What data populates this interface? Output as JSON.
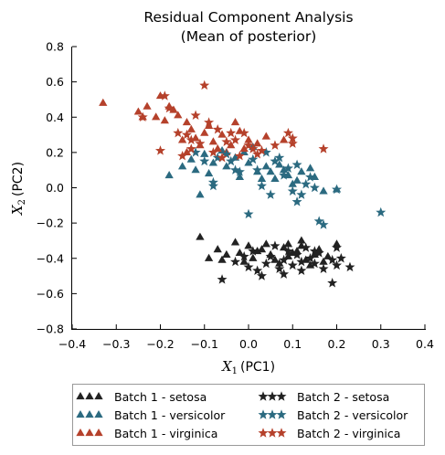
{
  "chart_data": {
    "type": "scatter",
    "title": [
      "Residual Component Analysis",
      "(Mean of posterior)"
    ],
    "xlabel": {
      "var": "X",
      "sub": "1",
      "suffix": "(PC1)"
    },
    "ylabel": {
      "var": "X",
      "sub": "2",
      "suffix": "(PC2)"
    },
    "xlim": [
      -0.4,
      0.4
    ],
    "ylim": [
      -0.8,
      0.8
    ],
    "xticks": [
      -0.4,
      -0.3,
      -0.2,
      -0.1,
      0.0,
      0.1,
      0.2,
      0.3,
      0.4
    ],
    "xtick_labels": [
      "−0.4",
      "−0.3",
      "−0.2",
      "−0.1",
      "0.0",
      "0.1",
      "0.2",
      "0.3",
      "0.4"
    ],
    "yticks": [
      -0.8,
      -0.6,
      -0.4,
      -0.2,
      0.0,
      0.2,
      0.4,
      0.6,
      0.8
    ],
    "ytick_labels": [
      "−0.8",
      "−0.6",
      "−0.4",
      "−0.2",
      "0.0",
      "0.2",
      "0.4",
      "0.6",
      "0.8"
    ],
    "grid": false,
    "legend_position": "below plot, two columns",
    "series": [
      {
        "name": "Batch 1 - setosa",
        "marker": "triangle",
        "color": "#222222",
        "points": [
          [
            -0.11,
            -0.28
          ],
          [
            -0.07,
            -0.35
          ],
          [
            -0.03,
            -0.31
          ],
          [
            -0.09,
            -0.4
          ],
          [
            -0.05,
            -0.38
          ],
          [
            -0.02,
            -0.37
          ],
          [
            0.0,
            -0.33
          ],
          [
            -0.06,
            -0.41
          ],
          [
            0.02,
            -0.36
          ],
          [
            0.04,
            -0.32
          ],
          [
            0.01,
            -0.4
          ],
          [
            0.05,
            -0.38
          ],
          [
            -0.01,
            -0.42
          ],
          [
            0.08,
            -0.34
          ],
          [
            0.06,
            -0.41
          ],
          [
            0.1,
            -0.37
          ],
          [
            0.12,
            -0.3
          ],
          [
            0.09,
            -0.39
          ],
          [
            0.03,
            -0.35
          ],
          [
            0.13,
            -0.41
          ],
          [
            0.11,
            -0.36
          ],
          [
            0.15,
            -0.38
          ],
          [
            0.17,
            -0.42
          ],
          [
            0.14,
            -0.44
          ],
          [
            0.07,
            -0.43
          ],
          [
            0.18,
            -0.39
          ],
          [
            0.2,
            -0.32
          ],
          [
            0.12,
            -0.33
          ],
          [
            0.16,
            -0.35
          ],
          [
            0.09,
            -0.32
          ]
        ]
      },
      {
        "name": "Batch 1 - versicolor",
        "marker": "triangle",
        "color": "#2b6a80",
        "points": [
          [
            -0.18,
            0.07
          ],
          [
            -0.15,
            0.12
          ],
          [
            -0.13,
            0.16
          ],
          [
            -0.12,
            0.1
          ],
          [
            -0.1,
            0.19
          ],
          [
            -0.08,
            0.14
          ],
          [
            -0.06,
            0.21
          ],
          [
            -0.05,
            0.12
          ],
          [
            -0.03,
            0.17
          ],
          [
            -0.01,
            0.2
          ],
          [
            0.01,
            0.23
          ],
          [
            0.0,
            0.14
          ],
          [
            0.02,
            0.09
          ],
          [
            0.04,
            0.12
          ],
          [
            0.05,
            0.09
          ],
          [
            0.06,
            0.05
          ],
          [
            0.07,
            0.13
          ],
          [
            0.08,
            0.1
          ],
          [
            0.09,
            0.07
          ],
          [
            0.1,
            0.02
          ],
          [
            0.11,
            0.04
          ],
          [
            0.12,
            0.09
          ],
          [
            0.14,
            0.11
          ],
          [
            0.15,
            0.06
          ],
          [
            0.17,
            -0.02
          ],
          [
            0.03,
            0.05
          ],
          [
            -0.02,
            0.06
          ],
          [
            -0.09,
            0.08
          ],
          [
            -0.11,
            -0.04
          ],
          [
            0.2,
            -0.01
          ]
        ]
      },
      {
        "name": "Batch 1 - virginica",
        "marker": "triangle",
        "color": "#b5412b",
        "points": [
          [
            -0.33,
            0.48
          ],
          [
            -0.25,
            0.43
          ],
          [
            -0.23,
            0.46
          ],
          [
            -0.2,
            0.52
          ],
          [
            -0.18,
            0.46
          ],
          [
            -0.16,
            0.41
          ],
          [
            -0.14,
            0.37
          ],
          [
            -0.13,
            0.33
          ],
          [
            -0.12,
            0.28
          ],
          [
            -0.15,
            0.27
          ],
          [
            -0.1,
            0.31
          ],
          [
            -0.08,
            0.26
          ],
          [
            -0.06,
            0.3
          ],
          [
            -0.04,
            0.24
          ],
          [
            -0.03,
            0.37
          ],
          [
            -0.02,
            0.32
          ],
          [
            -0.01,
            0.22
          ],
          [
            0.0,
            0.27
          ],
          [
            0.02,
            0.25
          ],
          [
            -0.17,
            0.44
          ],
          [
            -0.21,
            0.4
          ],
          [
            -0.07,
            0.22
          ],
          [
            -0.11,
            0.24
          ],
          [
            0.04,
            0.29
          ],
          [
            0.08,
            0.27
          ],
          [
            -0.14,
            0.2
          ],
          [
            -0.09,
            0.35
          ],
          [
            -0.05,
            0.2
          ],
          [
            -0.24,
            0.4
          ],
          [
            -0.19,
            0.38
          ]
        ]
      },
      {
        "name": "Batch 2 - setosa",
        "marker": "star",
        "color": "#222222",
        "points": [
          [
            -0.06,
            -0.52
          ],
          [
            -0.03,
            -0.42
          ],
          [
            0.0,
            -0.45
          ],
          [
            0.02,
            -0.47
          ],
          [
            0.04,
            -0.43
          ],
          [
            0.05,
            -0.39
          ],
          [
            0.07,
            -0.46
          ],
          [
            0.08,
            -0.41
          ],
          [
            0.09,
            -0.36
          ],
          [
            0.1,
            -0.44
          ],
          [
            0.11,
            -0.38
          ],
          [
            0.12,
            -0.47
          ],
          [
            0.13,
            -0.34
          ],
          [
            0.14,
            -0.4
          ],
          [
            0.15,
            -0.43
          ],
          [
            0.16,
            -0.37
          ],
          [
            0.17,
            -0.46
          ],
          [
            0.19,
            -0.41
          ],
          [
            0.2,
            -0.44
          ],
          [
            0.21,
            -0.4
          ],
          [
            0.23,
            -0.45
          ],
          [
            0.2,
            -0.34
          ],
          [
            0.19,
            -0.54
          ],
          [
            0.06,
            -0.33
          ],
          [
            0.01,
            -0.36
          ],
          [
            -0.01,
            -0.39
          ],
          [
            0.03,
            -0.5
          ],
          [
            0.08,
            -0.49
          ],
          [
            0.12,
            -0.42
          ],
          [
            0.15,
            -0.36
          ]
        ]
      },
      {
        "name": "Batch 2 - versicolor",
        "marker": "star",
        "color": "#2b6a80",
        "points": [
          [
            -0.12,
            0.2
          ],
          [
            -0.1,
            0.15
          ],
          [
            -0.08,
            0.01
          ],
          [
            -0.07,
            0.17
          ],
          [
            -0.04,
            0.15
          ],
          [
            -0.02,
            0.09
          ],
          [
            0.0,
            -0.15
          ],
          [
            0.01,
            0.16
          ],
          [
            0.03,
            0.01
          ],
          [
            0.05,
            -0.04
          ],
          [
            0.06,
            0.15
          ],
          [
            0.08,
            0.07
          ],
          [
            0.1,
            -0.02
          ],
          [
            0.11,
            0.13
          ],
          [
            0.12,
            -0.04
          ],
          [
            0.13,
            0.02
          ],
          [
            0.14,
            0.06
          ],
          [
            0.16,
            -0.19
          ],
          [
            0.17,
            -0.21
          ],
          [
            0.2,
            -0.01
          ],
          [
            0.3,
            -0.14
          ],
          [
            -0.08,
            0.03
          ],
          [
            0.04,
            0.2
          ],
          [
            0.07,
            0.17
          ],
          [
            0.09,
            0.11
          ],
          [
            -0.05,
            0.19
          ],
          [
            0.11,
            -0.08
          ],
          [
            0.02,
            0.1
          ],
          [
            0.15,
            0.0
          ],
          [
            -0.03,
            0.1
          ]
        ]
      },
      {
        "name": "Batch 2 - virginica",
        "marker": "star",
        "color": "#b5412b",
        "points": [
          [
            -0.1,
            0.58
          ],
          [
            -0.24,
            0.4
          ],
          [
            -0.2,
            0.21
          ],
          [
            -0.18,
            0.45
          ],
          [
            -0.16,
            0.31
          ],
          [
            -0.14,
            0.3
          ],
          [
            -0.13,
            0.22
          ],
          [
            -0.12,
            0.41
          ],
          [
            -0.11,
            0.25
          ],
          [
            -0.09,
            0.37
          ],
          [
            -0.08,
            0.2
          ],
          [
            -0.07,
            0.33
          ],
          [
            -0.05,
            0.26
          ],
          [
            -0.03,
            0.27
          ],
          [
            -0.02,
            0.18
          ],
          [
            -0.01,
            0.31
          ],
          [
            0.0,
            0.24
          ],
          [
            0.01,
            0.22
          ],
          [
            0.03,
            0.21
          ],
          [
            0.06,
            0.24
          ],
          [
            0.09,
            0.31
          ],
          [
            0.1,
            0.28
          ],
          [
            0.17,
            0.22
          ],
          [
            -0.15,
            0.18
          ],
          [
            -0.06,
            0.17
          ],
          [
            -0.04,
            0.31
          ],
          [
            0.02,
            0.19
          ],
          [
            0.1,
            0.25
          ],
          [
            -0.19,
            0.52
          ],
          [
            -0.13,
            0.27
          ]
        ]
      }
    ]
  }
}
